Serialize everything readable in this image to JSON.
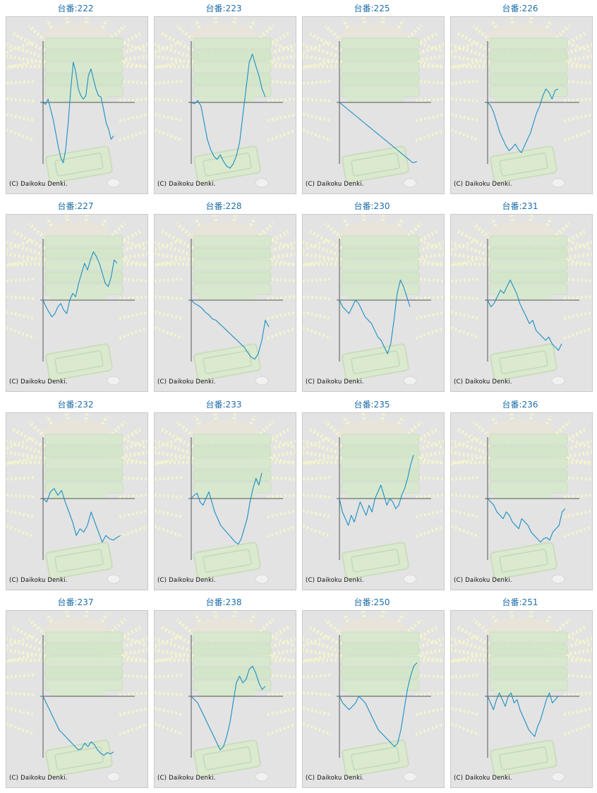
{
  "copyright": "(C) Daikoku Denki.",
  "colors": {
    "line": "#1a8fc4",
    "title": "#1f6fa8",
    "axis": "#555555",
    "panel": "#e3e3e3"
  },
  "chart_data": [
    {
      "type": "line",
      "title": "台番:222",
      "y": [
        0,
        -3,
        5,
        -10,
        -25,
        -45,
        -65,
        -82,
        -90,
        -70,
        -30,
        20,
        60,
        45,
        20,
        10,
        5,
        10,
        40,
        50,
        35,
        20,
        10,
        8,
        -10,
        -30,
        -40,
        -55,
        -50
      ]
    },
    {
      "type": "line",
      "title": "台番:223",
      "y": [
        0,
        -2,
        3,
        -5,
        -30,
        -55,
        -70,
        -80,
        -85,
        -78,
        -88,
        -95,
        -98,
        -92,
        -80,
        -60,
        -20,
        20,
        60,
        72,
        55,
        40,
        20,
        8
      ]
    },
    {
      "type": "line",
      "title": "台番:225",
      "y": [
        0,
        -5,
        -10,
        -15,
        -20,
        -25,
        -30,
        -35,
        -40,
        -45,
        -50,
        -55,
        -60,
        -65,
        -70,
        -75,
        -80,
        -85,
        -90,
        -88
      ]
    },
    {
      "type": "line",
      "title": "台番:226",
      "y": [
        0,
        -5,
        -15,
        -30,
        -45,
        -55,
        -65,
        -72,
        -68,
        -62,
        -70,
        -75,
        -65,
        -55,
        -45,
        -30,
        -15,
        -5,
        10,
        20,
        15,
        5,
        18,
        20
      ]
    },
    {
      "type": "line",
      "title": "台番:227",
      "y": [
        0,
        -10,
        -18,
        -25,
        -20,
        -10,
        -5,
        -15,
        -20,
        0,
        10,
        5,
        25,
        40,
        55,
        45,
        60,
        72,
        65,
        55,
        40,
        25,
        20,
        35,
        60,
        55
      ]
    },
    {
      "type": "line",
      "title": "台番:228",
      "y": [
        0,
        -5,
        -8,
        -12,
        -18,
        -22,
        -28,
        -30,
        -35,
        -40,
        -45,
        -50,
        -55,
        -60,
        -65,
        -70,
        -78,
        -85,
        -88,
        -80,
        -60,
        -30,
        -40
      ]
    },
    {
      "type": "line",
      "title": "台番:230",
      "y": [
        0,
        -10,
        -15,
        -20,
        -10,
        0,
        -5,
        -15,
        -25,
        -30,
        -35,
        -45,
        -55,
        -60,
        -70,
        -80,
        -65,
        -30,
        10,
        30,
        20,
        5,
        -10
      ]
    },
    {
      "type": "line",
      "title": "台番:231",
      "y": [
        0,
        -10,
        -5,
        5,
        15,
        10,
        20,
        30,
        20,
        10,
        -5,
        -15,
        -25,
        -35,
        -30,
        -45,
        -50,
        -55,
        -60,
        -55,
        -65,
        -70,
        -75,
        -65
      ]
    },
    {
      "type": "line",
      "title": "台番:232",
      "y": [
        0,
        -5,
        10,
        15,
        5,
        12,
        -5,
        -20,
        -35,
        -55,
        -45,
        -50,
        -40,
        -20,
        -35,
        -50,
        -65,
        -55,
        -60,
        -62,
        -58,
        -55
      ]
    },
    {
      "type": "line",
      "title": "台番:233",
      "y": [
        0,
        5,
        8,
        -5,
        -10,
        0,
        10,
        -5,
        -20,
        -30,
        -40,
        -45,
        -50,
        -55,
        -60,
        -65,
        -68,
        -60,
        -45,
        -30,
        -5,
        15,
        30,
        20,
        38
      ]
    },
    {
      "type": "line",
      "title": "台番:235",
      "y": [
        0,
        -20,
        -30,
        -40,
        -25,
        -35,
        -20,
        -5,
        -15,
        -25,
        -10,
        -20,
        0,
        10,
        20,
        5,
        -10,
        0,
        -5,
        -15,
        -10,
        5,
        15,
        30,
        50,
        65
      ]
    },
    {
      "type": "line",
      "title": "台番:236",
      "y": [
        0,
        -5,
        -10,
        -20,
        -25,
        -30,
        -20,
        -25,
        -35,
        -40,
        -45,
        -30,
        -35,
        -40,
        -50,
        -55,
        -60,
        -65,
        -60,
        -58,
        -62,
        -50,
        -45,
        -40,
        -20,
        -15
      ]
    },
    {
      "type": "line",
      "title": "台番:237",
      "y": [
        0,
        -10,
        -20,
        -30,
        -40,
        -50,
        -55,
        -60,
        -65,
        -70,
        -75,
        -80,
        -78,
        -70,
        -75,
        -68,
        -72,
        -80,
        -85,
        -88,
        -84,
        -86,
        -83
      ]
    },
    {
      "type": "line",
      "title": "台番:238",
      "y": [
        0,
        -5,
        -10,
        -20,
        -30,
        -40,
        -50,
        -60,
        -70,
        -80,
        -75,
        -60,
        -40,
        -10,
        20,
        30,
        20,
        25,
        40,
        45,
        35,
        20,
        10,
        15
      ]
    },
    {
      "type": "line",
      "title": "台番:250",
      "y": [
        0,
        -10,
        -15,
        -20,
        -15,
        -10,
        0,
        -5,
        -10,
        -20,
        -30,
        -40,
        -50,
        -55,
        -60,
        -65,
        -70,
        -75,
        -70,
        -50,
        -20,
        10,
        30,
        45,
        50
      ]
    },
    {
      "type": "line",
      "title": "台番:251",
      "y": [
        0,
        -10,
        -20,
        -5,
        5,
        -5,
        -15,
        0,
        5,
        -10,
        -5,
        -20,
        -30,
        -40,
        -50,
        -55,
        -60,
        -45,
        -35,
        -20,
        -5,
        5,
        -10,
        -5,
        0
      ]
    }
  ]
}
